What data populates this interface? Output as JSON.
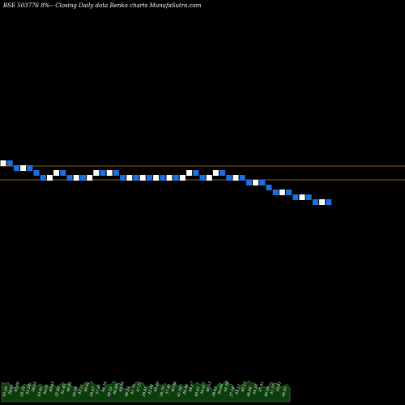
{
  "chart_data": {
    "type": "renko",
    "title": "BSE 503776  8%-- Closing Daily data  Renko  charts MunafaSutra.com",
    "colors": {
      "background": "#000000",
      "up_brick": "#ffffff",
      "down_brick": "#1e6fe0",
      "reference_line": "#c87a1e",
      "volume_fill": "#0c3d0c",
      "volume_edge": "#2e9a2e"
    },
    "reference_lines": [
      "upper",
      "lower"
    ],
    "bricks": [
      "up",
      "down",
      "down",
      "up",
      "down",
      "down",
      "down",
      "up",
      "up",
      "down",
      "down",
      "up",
      "down",
      "up",
      "up",
      "down",
      "up",
      "down",
      "down",
      "up",
      "down",
      "up",
      "down",
      "up",
      "down",
      "up",
      "down",
      "up",
      "up",
      "down",
      "down",
      "up",
      "up",
      "down",
      "down",
      "up",
      "down",
      "down",
      "up",
      "down",
      "down",
      "down",
      "up",
      "down",
      "down",
      "up",
      "down",
      "down",
      "up",
      "down"
    ],
    "volume_labels": [
      "43.29",
      "58.61",
      "43.60",
      "18.35",
      "42.54",
      "38.65",
      "43.92",
      "44.01",
      "49.83",
      "32.80",
      "42.45",
      "46.01",
      "44.55",
      "43.31",
      "40.61",
      "39.47",
      "37.41",
      "44.34",
      "44.55",
      "46.89",
      "49.54",
      "46.53",
      "41.73",
      "47.27",
      "39.81",
      "42.04",
      "43.40",
      "38.79",
      "37.40",
      "40.64",
      "41.58",
      "40.46",
      "44.67",
      "40.02",
      "39.41",
      "46.53",
      "39.43",
      "40.64",
      "44.39",
      "37.16",
      "43.12",
      "40.29",
      "46.06",
      "44.15",
      "47.81",
      "46.55",
      "41.57",
      "39.91",
      "44.91"
    ]
  }
}
